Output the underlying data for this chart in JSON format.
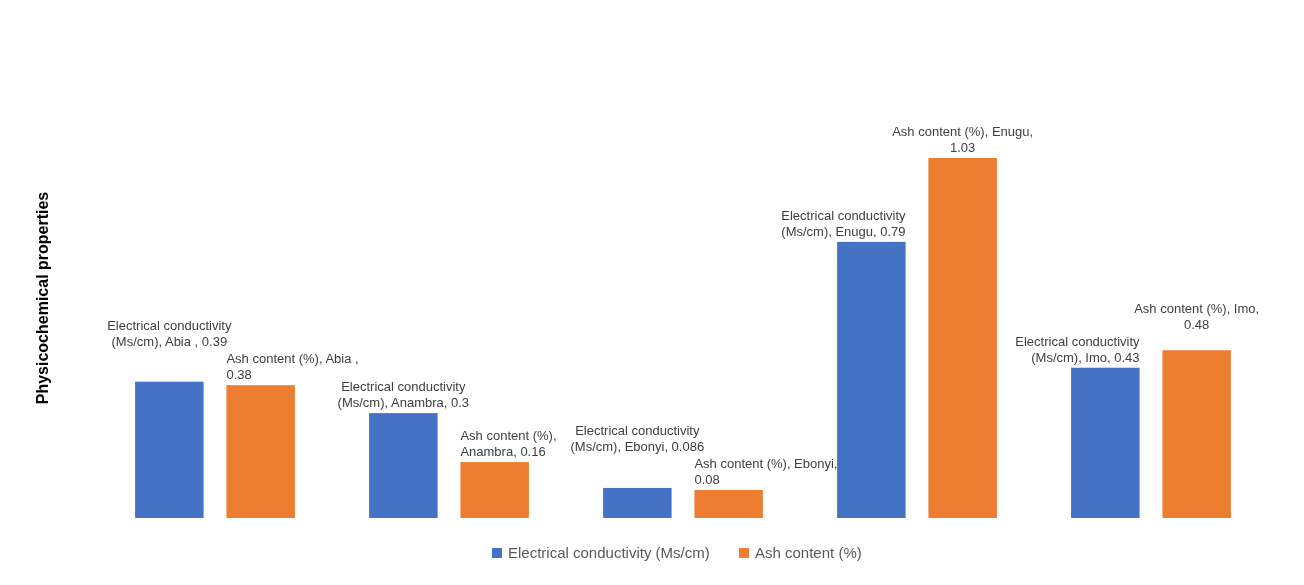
{
  "chart_data": {
    "type": "bar",
    "ylabel": "Physicochemical properties",
    "categories": [
      null,
      null,
      null,
      null,
      null
    ],
    "legend": "bottom",
    "series": [
      {
        "name": "Electrical conductivity (Ms/cm)",
        "color": "#4472c4",
        "values": [
          0.39,
          0.3,
          0.086,
          0.79,
          0.43
        ],
        "value_labels": [
          "Electrical conductivity (Ms/cm), Abia , 0.39",
          "Electrical conductivity (Ms/cm), Anambra, 0.3",
          "Electrical conductivity (Ms/cm), Ebonyi, 0.086",
          "Electrical conductivity (Ms/cm), Enugu, 0.79",
          "Electrical conductivity (Ms/cm), Imo, 0.43"
        ]
      },
      {
        "name": "Ash content (%)",
        "color": "#ed7d31",
        "values": [
          0.38,
          0.16,
          0.08,
          1.03,
          0.48
        ],
        "value_labels": [
          "Ash content (%), Abia , 0.38",
          "Ash content (%), Anambra, 0.16",
          "Ash content (%), Ebonyi, 0.08",
          "Ash content (%), Enugu, 1.03",
          "Ash content (%), Imo, 0.48"
        ]
      }
    ]
  }
}
